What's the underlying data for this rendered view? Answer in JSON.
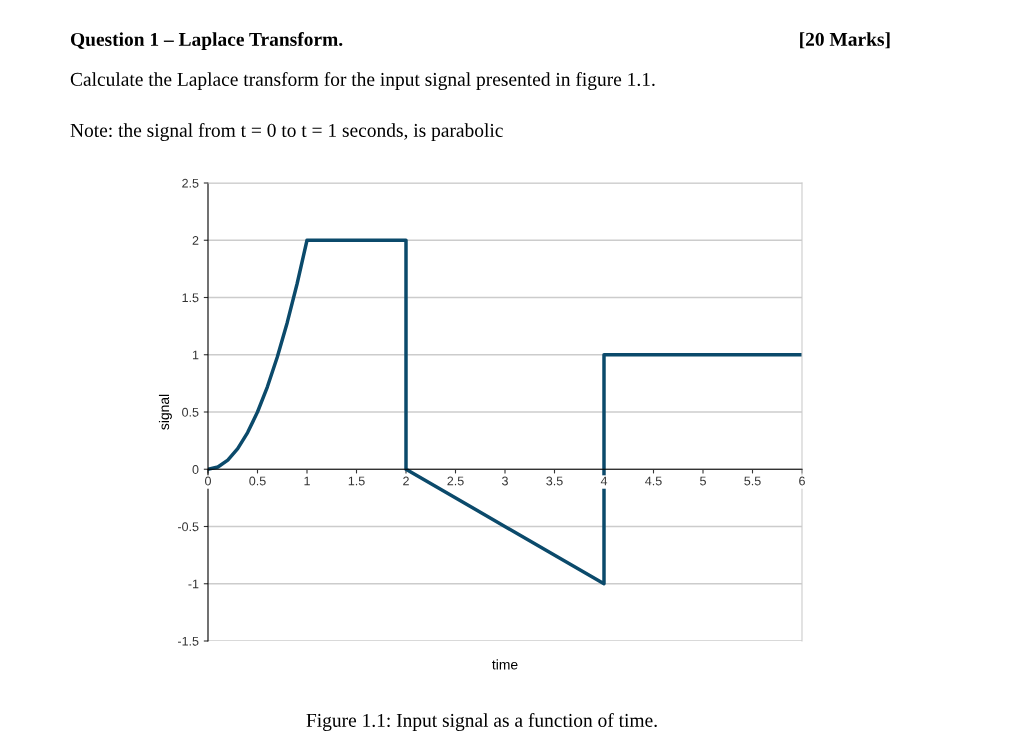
{
  "chart_data": {
    "type": "line",
    "title": "Question 1 – Laplace Transform.",
    "subtitle": "Calculate the Laplace transform for the input signal presented in figure 1.1.",
    "annotations": [
      "[20 Marks]",
      "Note: the signal from t = 0 to t = 1 seconds, is parabolic",
      "Figure 1.1: Input signal as a function of time."
    ],
    "xlabel": "time",
    "ylabel": "signal",
    "series": [
      {
        "color": "#0b4a6b",
        "x": [
          0,
          0.1,
          0.2,
          0.3,
          0.4,
          0.5,
          0.6,
          0.7,
          0.8,
          0.9,
          1,
          2,
          2,
          4,
          4,
          6
        ],
        "values": [
          0,
          0.02,
          0.08,
          0.18,
          0.32,
          0.5,
          0.72,
          0.98,
          1.28,
          1.62,
          2,
          2,
          0,
          -1,
          1,
          1
        ]
      }
    ],
    "xlim": [
      0,
      6
    ],
    "xticks": [
      0,
      0.5,
      1,
      1.5,
      2,
      2.5,
      3,
      3.5,
      4,
      4.5,
      5,
      5.5,
      6
    ],
    "ylim": [
      -1.5,
      2.5
    ],
    "yticks": [
      -1.5,
      -1,
      -0.5,
      0,
      0.5,
      1,
      1.5,
      2,
      2.5
    ],
    "grid": "y",
    "legend": false,
    "marker": "none",
    "line_style": "solid"
  }
}
